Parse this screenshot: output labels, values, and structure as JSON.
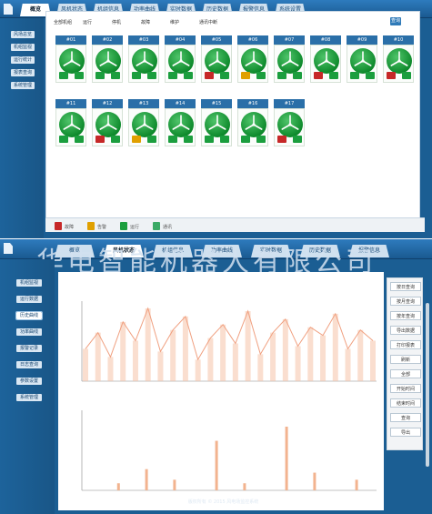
{
  "top_window": {
    "tabs": [
      "概览",
      "风机状态",
      "机组信息",
      "功率曲线",
      "实时数据",
      "历史数据",
      "报警信息",
      "系统设置"
    ],
    "active_tab": 0,
    "sidebar": [
      "风场总览",
      "机组监视",
      "运行统计",
      "报表查询",
      "系统管理"
    ],
    "toolbar_links": [
      "全部机组",
      "运行",
      "停机",
      "故障",
      "维护",
      "通讯中断"
    ],
    "search_button": "查询",
    "turbines": [
      {
        "name": "#01",
        "status": "ok"
      },
      {
        "name": "#02",
        "status": "ok"
      },
      {
        "name": "#03",
        "status": "ok"
      },
      {
        "name": "#04",
        "status": "ok"
      },
      {
        "name": "#05",
        "status": "fault"
      },
      {
        "name": "#06",
        "status": "warning"
      },
      {
        "name": "#07",
        "status": "ok"
      },
      {
        "name": "#08",
        "status": "fault"
      },
      {
        "name": "#09",
        "status": "ok"
      },
      {
        "name": "#10",
        "status": "fault"
      },
      {
        "name": "#11",
        "status": "ok"
      },
      {
        "name": "#12",
        "status": "fault"
      },
      {
        "name": "#13",
        "status": "warning"
      },
      {
        "name": "#14",
        "status": "ok"
      },
      {
        "name": "#15",
        "status": "ok"
      },
      {
        "name": "#16",
        "status": "ok"
      },
      {
        "name": "#17",
        "status": "fault"
      }
    ],
    "legend": [
      {
        "label": "故障",
        "color": "#c62828"
      },
      {
        "label": "告警",
        "color": "#e0a000"
      },
      {
        "label": "运行",
        "color": "#1b9e3e"
      },
      {
        "label": "通讯",
        "color": "#3aaa66"
      }
    ]
  },
  "bottom_window": {
    "tabs": [
      "概览",
      "风机状态",
      "机组信息",
      "功率曲线",
      "实时数据",
      "历史数据",
      "报警信息"
    ],
    "active_tab": 1,
    "sidebar": [
      "机组监视",
      "运行数据",
      "历史曲线",
      "功率曲线",
      "报警记录",
      "日志查询",
      "参数设置",
      "系统管理"
    ],
    "active_sidebar": 2,
    "watermark": "华电智能机器人有限公司",
    "right_buttons": [
      "按日查询",
      "按月查询",
      "按年查询",
      "导出数据",
      "打印报表",
      "刷新",
      "全部",
      "开始时间",
      "结束时间",
      "查询",
      "导出"
    ],
    "footer": "版权所有 © 2015 风电场监控系统"
  },
  "colors": {
    "frame": "#1b5e93",
    "ok": "#1b9e3e",
    "fault": "#c62828",
    "warning": "#e0a000",
    "chart_line": "#f0a080"
  },
  "chart_data": [
    {
      "type": "line",
      "title": "",
      "xlabel": "",
      "ylabel": "",
      "series": [
        {
          "values": [
            12,
            18,
            9,
            22,
            15,
            27,
            11,
            19,
            24,
            8,
            16,
            21,
            14,
            26,
            10,
            18,
            23,
            13,
            20,
            17,
            25,
            12,
            19,
            15
          ]
        }
      ]
    },
    {
      "type": "bar",
      "title": "",
      "xlabel": "",
      "ylabel": "",
      "series": [
        {
          "values": [
            0,
            0,
            2,
            0,
            6,
            0,
            3,
            0,
            0,
            14,
            0,
            2,
            0,
            0,
            18,
            0,
            5,
            0,
            0,
            3
          ]
        }
      ]
    }
  ]
}
